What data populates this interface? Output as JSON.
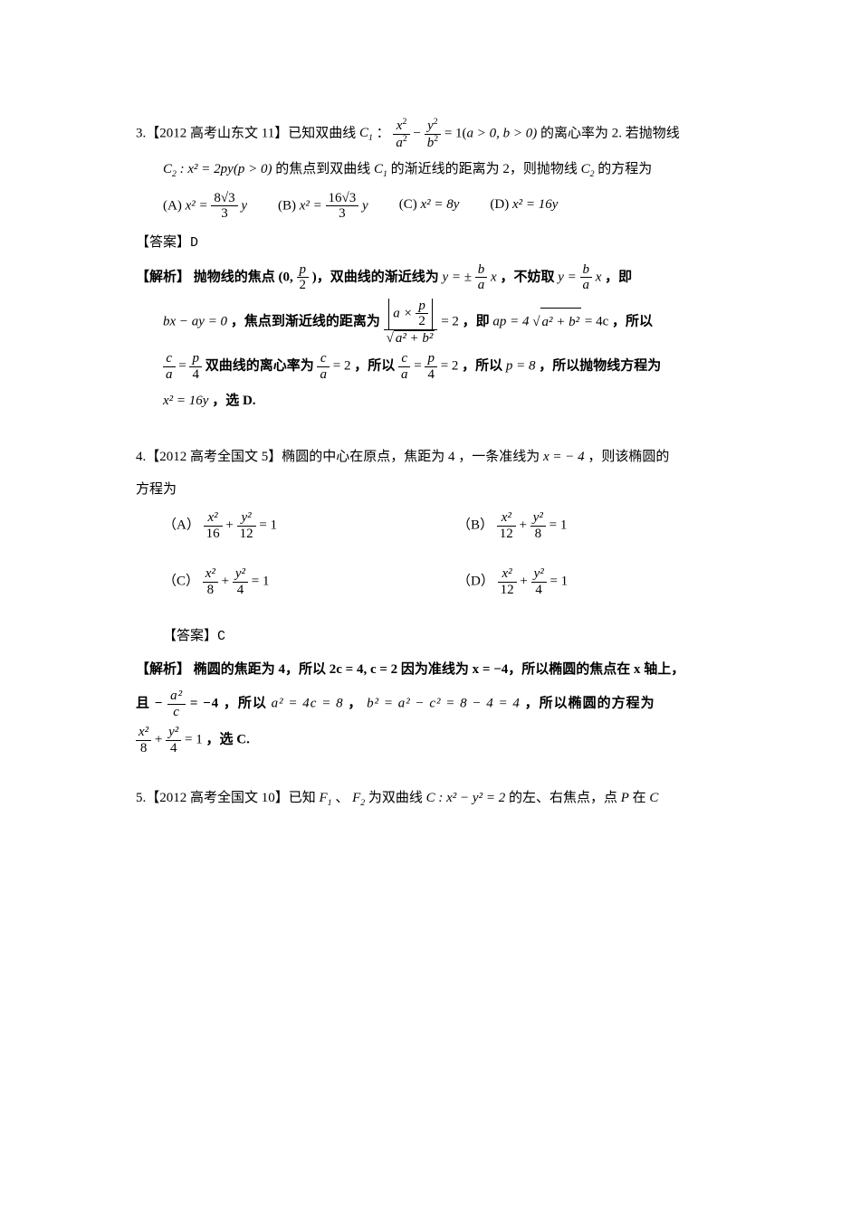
{
  "q3": {
    "intro_a": "3.【2012 高考山东文 11】已知双曲线",
    "C1": "C",
    "C1sub": "1",
    "colon": "：",
    "hyp_eq_lhs_x": "x",
    "hyp_eq_lhs_xs": "2",
    "hyp_eq_lhs_a": "a",
    "hyp_eq_lhs_as": "2",
    "hyp_eq_minus": "−",
    "hyp_eq_lhs_y": "y",
    "hyp_eq_lhs_ys": "2",
    "hyp_eq_lhs_b": "b",
    "hyp_eq_lhs_bs": "2",
    "hyp_eq_eq": "= 1(",
    "hyp_cond": "a > 0, b > 0)",
    "intro_b": "的离心率为 2. 若抛物线",
    "C2": "C",
    "C2sub": "2",
    "C2eq": " : x² = 2py(p > 0)",
    "intro_c": "的焦点到双曲线",
    "C1b": "C",
    "C1bsub": "1",
    "intro_d": "的渐近线的距离为 2，则抛物线",
    "C2b": "C",
    "C2bsub": "2",
    "intro_e": "的方程为",
    "options": {
      "A_lbl": "(A)  ",
      "A_lhs": "x² =",
      "A_num": "8√3",
      "A_den": "3",
      "A_tail": "y",
      "B_lbl": "(B)  ",
      "B_lhs": "x² =",
      "B_num": "16√3",
      "B_den": "3",
      "B_tail": "y",
      "C_lbl": "(C) ",
      "C_txt": "x² = 8y",
      "D_lbl": "(D) ",
      "D_txt": "x² = 16y"
    },
    "answer_lbl": "【答案】",
    "answer_val": "D",
    "sol_lbl": "【解析】",
    "sol_1a": "抛物线的焦点  (0,",
    "sol_1_pnum": "p",
    "sol_1_pden": "2",
    "sol_1b": ")，双曲线的渐近线为 ",
    "sol_1_y": "y = ±",
    "sol_1_bn": "b",
    "sol_1_bd": "a",
    "sol_1_xc": "x",
    "sol_1c": "，不妨取 ",
    "sol_1_y2": "y = ",
    "sol_1_bn2": "b",
    "sol_1_bd2": "a",
    "sol_1_xc2": "x",
    "sol_1d": "，即",
    "sol_2a": "bx − ay = 0",
    "sol_2b": "，焦点到渐近线的距离为 ",
    "sol_2_abs_an": "a ×",
    "sol_2_abs_pn": "p",
    "sol_2_abs_pd": "2",
    "sol_2_den": "a² + b²",
    "sol_2_eq2": "= 2",
    "sol_2c": "，即",
    "sol_2_ap": "ap = 4",
    "sol_2_sq": "a² + b²",
    "sol_2_eq4c": "= 4c",
    "sol_2d": "，所以",
    "sol_3_cn": "c",
    "sol_3_cd": "a",
    "sol_3_eq": "=",
    "sol_3_pn": "p",
    "sol_3_pd": "4",
    "sol_3a": "双曲线的离心率为",
    "sol_3_cn2": "c",
    "sol_3_cd2": "a",
    "sol_3_eq2": "= 2",
    "sol_3b": "，所以",
    "sol_3_cn3": "c",
    "sol_3_cd3": "a",
    "sol_3_eq3": "=",
    "sol_3_pn3": "p",
    "sol_3_pd3": "4",
    "sol_3_eq2b": "= 2",
    "sol_3c": "，所以 ",
    "sol_3_p8": "p = 8",
    "sol_3d": "，所以抛物线方程为",
    "sol_4a": "x² = 16y",
    "sol_4b": "，选 D."
  },
  "q4": {
    "intro_a": "4.【2012 高考全国文 5】椭圆的中心在原点，焦距为 4 ，一条准线为 ",
    "intro_x": "x = − 4",
    "intro_b": "，则该椭圆的",
    "intro_c": "方程为",
    "options": {
      "A_lbl": "（A）",
      "A_xn": "x²",
      "A_xd": "16",
      "A_yn": "y²",
      "A_yd": "12",
      "A_eq": "= 1",
      "B_lbl": "（B）",
      "B_xn": "x²",
      "B_xd": "12",
      "B_yn": "y²",
      "B_yd": "8",
      "B_eq": "= 1",
      "C_lbl": "（C）",
      "C_xn": "x²",
      "C_xd": "8",
      "C_yn": "y²",
      "C_yd": "4",
      "C_eq": "= 1",
      "D_lbl": "（D）",
      "D_xn": "x²",
      "D_xd": "12",
      "D_yn": "y²",
      "D_yd": "4",
      "D_eq": "= 1"
    },
    "answer_lbl": "【答案】",
    "answer_val": "C",
    "sol_lbl": "【解析】",
    "sol_1": "椭圆的焦距为 4，所以 2c = 4, c = 2 因为准线为 x = −4，所以椭圆的焦点在 x 轴上，",
    "sol_2a": "且 −",
    "sol_2_an": "a²",
    "sol_2_ad": "c",
    "sol_2b": "= −4 ，所以 ",
    "sol_2_a4c": "a² = 4c = 8",
    "sol_2c": "， ",
    "sol_2_b2": "b² = a² − c² = 8 − 4 = 4",
    "sol_2d": " ，所以椭圆的方程为",
    "sol_3_xn": "x²",
    "sol_3_xd": "8",
    "sol_3_plus": "+",
    "sol_3_yn": "y²",
    "sol_3_yd": "4",
    "sol_3_eq": "= 1",
    "sol_3b": "，选 C."
  },
  "q5": {
    "intro_a": "5.【2012 高考全国文 10】已知",
    "F1": "F",
    "F1s": "1",
    "sep": "、",
    "F2": "F",
    "F2s": "2",
    "intro_b": "为双曲线",
    "Ceq": "C : x² − y² = 2",
    "intro_c": "的左、右焦点，点",
    "P": "P",
    "intro_d": "在",
    "C": "C"
  },
  "colors": {
    "text": "#000000",
    "bg": "#ffffff"
  },
  "fontsize_pt": 11
}
